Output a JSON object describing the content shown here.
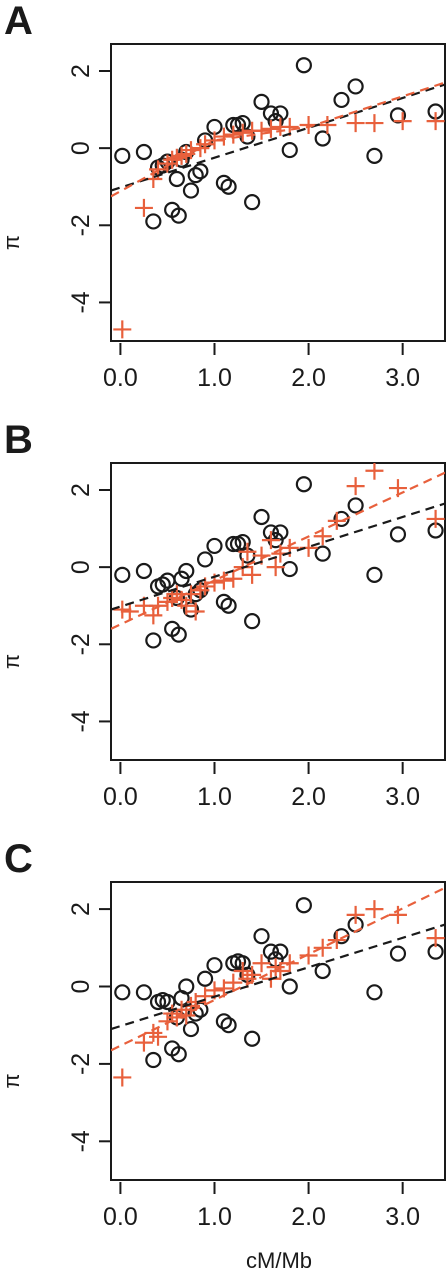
{
  "xlabel": "cM/Mb",
  "colors": {
    "black_series": "#1a1a1a",
    "red_series": "#e8603c"
  },
  "chart_data": [
    {
      "type": "scatter",
      "panel": "A",
      "ylabel": "π",
      "xlim": [
        -0.1,
        3.45
      ],
      "ylim": [
        -5.0,
        2.7
      ],
      "x_ticks": [
        0.0,
        1.0,
        2.0,
        3.0
      ],
      "x_tick_labels": [
        "0.0",
        "1.0",
        "2.0",
        "3.0"
      ],
      "y_ticks": [
        -4,
        -2,
        0,
        2
      ],
      "y_tick_labels": [
        "-4",
        "-2",
        "0",
        "2"
      ],
      "series": [
        {
          "marker": "circle",
          "color": "#1a1a1a",
          "points": [
            [
              0.02,
              -0.2
            ],
            [
              0.25,
              -0.1
            ],
            [
              0.35,
              -1.9
            ],
            [
              0.4,
              -0.5
            ],
            [
              0.45,
              -0.45
            ],
            [
              0.5,
              -0.35
            ],
            [
              0.55,
              -1.6
            ],
            [
              0.6,
              -0.8
            ],
            [
              0.62,
              -1.75
            ],
            [
              0.65,
              -0.3
            ],
            [
              0.7,
              -0.1
            ],
            [
              0.75,
              -1.1
            ],
            [
              0.8,
              -0.7
            ],
            [
              0.85,
              -0.6
            ],
            [
              0.9,
              0.2
            ],
            [
              1.0,
              0.55
            ],
            [
              1.1,
              -0.9
            ],
            [
              1.15,
              -1.0
            ],
            [
              1.2,
              0.6
            ],
            [
              1.25,
              0.6
            ],
            [
              1.3,
              0.65
            ],
            [
              1.35,
              0.3
            ],
            [
              1.4,
              -1.4
            ],
            [
              1.5,
              1.2
            ],
            [
              1.6,
              0.9
            ],
            [
              1.65,
              0.7
            ],
            [
              1.7,
              0.9
            ],
            [
              1.8,
              -0.05
            ],
            [
              1.95,
              2.15
            ],
            [
              2.15,
              0.25
            ],
            [
              2.35,
              1.25
            ],
            [
              2.5,
              1.6
            ],
            [
              2.7,
              -0.2
            ],
            [
              2.95,
              0.85
            ],
            [
              3.35,
              0.95
            ]
          ]
        },
        {
          "marker": "plus",
          "color": "#e8603c",
          "points": [
            [
              0.02,
              -4.7
            ],
            [
              0.25,
              -1.55
            ],
            [
              0.35,
              -0.8
            ],
            [
              0.4,
              -0.55
            ],
            [
              0.5,
              -0.4
            ],
            [
              0.55,
              -0.3
            ],
            [
              0.6,
              -0.25
            ],
            [
              0.65,
              -0.2
            ],
            [
              0.7,
              -0.15
            ],
            [
              0.75,
              -0.05
            ],
            [
              0.85,
              0.0
            ],
            [
              0.9,
              0.1
            ],
            [
              1.0,
              0.2
            ],
            [
              1.1,
              0.3
            ],
            [
              1.2,
              0.35
            ],
            [
              1.3,
              0.4
            ],
            [
              1.4,
              0.45
            ],
            [
              1.5,
              0.45
            ],
            [
              1.6,
              0.5
            ],
            [
              1.7,
              0.55
            ],
            [
              1.8,
              0.55
            ],
            [
              2.0,
              0.6
            ],
            [
              2.2,
              0.6
            ],
            [
              2.5,
              0.65
            ],
            [
              2.7,
              0.65
            ],
            [
              3.0,
              0.7
            ],
            [
              3.35,
              0.7
            ]
          ]
        }
      ],
      "lines": [
        {
          "color": "#1a1a1a",
          "style": "dashed",
          "points": [
            [
              -0.1,
              -1.1
            ],
            [
              3.45,
              1.65
            ]
          ]
        },
        {
          "color": "#e8603c",
          "style": "dashed",
          "points": [
            [
              -0.1,
              -1.25
            ],
            [
              0.5,
              -0.45
            ],
            [
              1.0,
              0.2
            ],
            [
              2.0,
              0.55
            ],
            [
              3.45,
              1.7
            ]
          ]
        }
      ]
    },
    {
      "type": "scatter",
      "panel": "B",
      "ylabel": "π",
      "xlim": [
        -0.1,
        3.45
      ],
      "ylim": [
        -5.0,
        2.7
      ],
      "x_ticks": [
        0.0,
        1.0,
        2.0,
        3.0
      ],
      "x_tick_labels": [
        "0.0",
        "1.0",
        "2.0",
        "3.0"
      ],
      "y_ticks": [
        -4,
        -2,
        0,
        2
      ],
      "y_tick_labels": [
        "-4",
        "-2",
        "0",
        "2"
      ],
      "series": [
        {
          "marker": "circle",
          "color": "#1a1a1a",
          "points": [
            [
              0.02,
              -0.2
            ],
            [
              0.25,
              -0.1
            ],
            [
              0.35,
              -1.9
            ],
            [
              0.4,
              -0.5
            ],
            [
              0.45,
              -0.45
            ],
            [
              0.5,
              -0.35
            ],
            [
              0.55,
              -1.6
            ],
            [
              0.6,
              -0.8
            ],
            [
              0.62,
              -1.75
            ],
            [
              0.65,
              -0.3
            ],
            [
              0.7,
              -0.1
            ],
            [
              0.75,
              -1.1
            ],
            [
              0.8,
              -0.7
            ],
            [
              0.85,
              -0.6
            ],
            [
              0.9,
              0.2
            ],
            [
              1.0,
              0.55
            ],
            [
              1.1,
              -0.9
            ],
            [
              1.15,
              -1.0
            ],
            [
              1.2,
              0.6
            ],
            [
              1.25,
              0.6
            ],
            [
              1.3,
              0.65
            ],
            [
              1.35,
              0.3
            ],
            [
              1.4,
              -1.4
            ],
            [
              1.5,
              1.3
            ],
            [
              1.6,
              0.9
            ],
            [
              1.65,
              0.7
            ],
            [
              1.7,
              0.9
            ],
            [
              1.8,
              -0.05
            ],
            [
              1.95,
              2.15
            ],
            [
              2.15,
              0.35
            ],
            [
              2.35,
              1.25
            ],
            [
              2.5,
              1.6
            ],
            [
              2.7,
              -0.2
            ],
            [
              2.95,
              0.85
            ],
            [
              3.35,
              0.95
            ]
          ]
        },
        {
          "marker": "plus",
          "color": "#e8603c",
          "points": [
            [
              0.02,
              -1.1
            ],
            [
              0.1,
              -1.15
            ],
            [
              0.25,
              -1.0
            ],
            [
              0.35,
              -1.25
            ],
            [
              0.4,
              -1.0
            ],
            [
              0.5,
              -0.9
            ],
            [
              0.55,
              -0.8
            ],
            [
              0.6,
              -0.7
            ],
            [
              0.65,
              -0.85
            ],
            [
              0.7,
              -1.0
            ],
            [
              0.75,
              -0.7
            ],
            [
              0.8,
              -1.15
            ],
            [
              0.85,
              -0.6
            ],
            [
              0.9,
              -0.5
            ],
            [
              1.0,
              -0.4
            ],
            [
              1.1,
              -0.35
            ],
            [
              1.2,
              -0.3
            ],
            [
              1.3,
              0.0
            ],
            [
              1.35,
              0.4
            ],
            [
              1.4,
              -0.2
            ],
            [
              1.5,
              0.3
            ],
            [
              1.6,
              0.7
            ],
            [
              1.65,
              0.0
            ],
            [
              1.7,
              0.35
            ],
            [
              1.8,
              0.5
            ],
            [
              2.0,
              0.5
            ],
            [
              2.15,
              0.8
            ],
            [
              2.3,
              1.2
            ],
            [
              2.5,
              2.1
            ],
            [
              2.7,
              2.5
            ],
            [
              2.95,
              2.05
            ],
            [
              3.35,
              1.25
            ]
          ]
        }
      ],
      "lines": [
        {
          "color": "#1a1a1a",
          "style": "dashed",
          "points": [
            [
              -0.1,
              -1.1
            ],
            [
              3.45,
              1.65
            ]
          ]
        },
        {
          "color": "#e8603c",
          "style": "dashed",
          "points": [
            [
              -0.1,
              -1.6
            ],
            [
              3.45,
              2.45
            ]
          ]
        }
      ]
    },
    {
      "type": "scatter",
      "panel": "C",
      "ylabel": "π",
      "xlim": [
        -0.1,
        3.45
      ],
      "ylim": [
        -5.0,
        2.7
      ],
      "x_ticks": [
        0.0,
        1.0,
        2.0,
        3.0
      ],
      "x_tick_labels": [
        "0.0",
        "1.0",
        "2.0",
        "3.0"
      ],
      "y_ticks": [
        -4,
        -2,
        0,
        2
      ],
      "y_tick_labels": [
        "-4",
        "-2",
        "0",
        "2"
      ],
      "series": [
        {
          "marker": "circle",
          "color": "#1a1a1a",
          "points": [
            [
              0.02,
              -0.15
            ],
            [
              0.25,
              -0.15
            ],
            [
              0.35,
              -1.9
            ],
            [
              0.4,
              -0.4
            ],
            [
              0.45,
              -0.35
            ],
            [
              0.5,
              -0.4
            ],
            [
              0.55,
              -1.6
            ],
            [
              0.6,
              -0.8
            ],
            [
              0.62,
              -1.75
            ],
            [
              0.65,
              -0.3
            ],
            [
              0.7,
              0.0
            ],
            [
              0.75,
              -1.1
            ],
            [
              0.8,
              -0.7
            ],
            [
              0.85,
              -0.6
            ],
            [
              0.9,
              0.2
            ],
            [
              1.0,
              0.55
            ],
            [
              1.1,
              -0.9
            ],
            [
              1.15,
              -1.0
            ],
            [
              1.2,
              0.6
            ],
            [
              1.25,
              0.65
            ],
            [
              1.3,
              0.6
            ],
            [
              1.35,
              0.3
            ],
            [
              1.4,
              -1.35
            ],
            [
              1.5,
              1.3
            ],
            [
              1.6,
              0.9
            ],
            [
              1.65,
              0.7
            ],
            [
              1.7,
              0.9
            ],
            [
              1.8,
              0.0
            ],
            [
              1.95,
              2.1
            ],
            [
              2.15,
              0.4
            ],
            [
              2.35,
              1.3
            ],
            [
              2.5,
              1.6
            ],
            [
              2.7,
              -0.15
            ],
            [
              2.95,
              0.85
            ],
            [
              3.35,
              0.9
            ]
          ]
        },
        {
          "marker": "plus",
          "color": "#e8603c",
          "points": [
            [
              0.02,
              -2.35
            ],
            [
              0.25,
              -1.45
            ],
            [
              0.35,
              -1.2
            ],
            [
              0.4,
              -1.3
            ],
            [
              0.5,
              -0.9
            ],
            [
              0.55,
              -0.7
            ],
            [
              0.6,
              -0.8
            ],
            [
              0.65,
              -0.6
            ],
            [
              0.7,
              -0.75
            ],
            [
              0.75,
              -0.5
            ],
            [
              0.8,
              -0.4
            ],
            [
              0.9,
              -0.25
            ],
            [
              1.0,
              -0.1
            ],
            [
              1.1,
              -0.05
            ],
            [
              1.2,
              0.1
            ],
            [
              1.3,
              0.4
            ],
            [
              1.35,
              0.2
            ],
            [
              1.4,
              0.3
            ],
            [
              1.5,
              0.6
            ],
            [
              1.6,
              0.2
            ],
            [
              1.65,
              0.5
            ],
            [
              1.7,
              0.4
            ],
            [
              1.8,
              0.6
            ],
            [
              2.0,
              0.8
            ],
            [
              2.15,
              1.0
            ],
            [
              2.3,
              1.2
            ],
            [
              2.5,
              1.85
            ],
            [
              2.7,
              2.0
            ],
            [
              2.95,
              1.85
            ],
            [
              3.35,
              1.25
            ]
          ]
        }
      ],
      "lines": [
        {
          "color": "#1a1a1a",
          "style": "dashed",
          "points": [
            [
              -0.1,
              -1.1
            ],
            [
              3.45,
              1.6
            ]
          ]
        },
        {
          "color": "#e8603c",
          "style": "dashed",
          "points": [
            [
              -0.1,
              -1.65
            ],
            [
              3.45,
              2.55
            ]
          ]
        }
      ]
    }
  ]
}
